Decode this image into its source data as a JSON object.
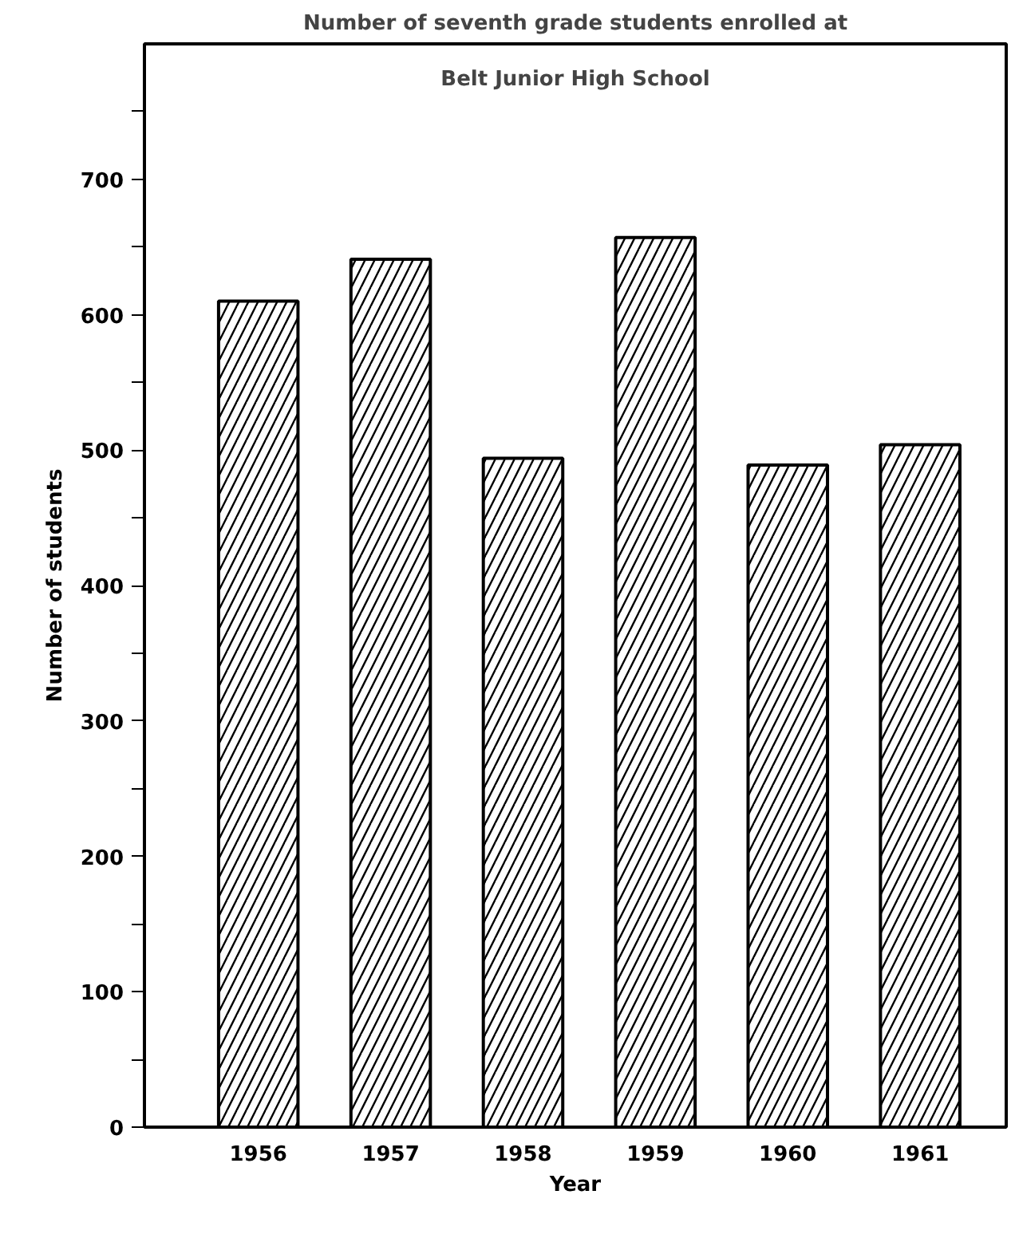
{
  "chart_data": {
    "type": "bar",
    "title": "Number of seventh grade students enrolled at",
    "subtitle": "Belt Junior High School",
    "xlabel": "Year",
    "ylabel": "Number of students",
    "categories": [
      "1956",
      "1957",
      "1958",
      "1959",
      "1960",
      "1961"
    ],
    "values": [
      610,
      641,
      494,
      657,
      489,
      504
    ],
    "color": "#000000",
    "ylim": [
      0,
      800
    ],
    "yticks": [
      0,
      {
        "value": 50,
        "label": null
      },
      100,
      {
        "value": 150,
        "label": null
      },
      200,
      {
        "value": 250,
        "label": null
      },
      300,
      {
        "value": 350,
        "label": null
      },
      400,
      {
        "value": 450,
        "label": null
      },
      500,
      {
        "value": 550,
        "label": null
      },
      600,
      {
        "value": 650,
        "label": null
      },
      700,
      {
        "value": 750,
        "label": null
      }
    ],
    "grid": false
  }
}
